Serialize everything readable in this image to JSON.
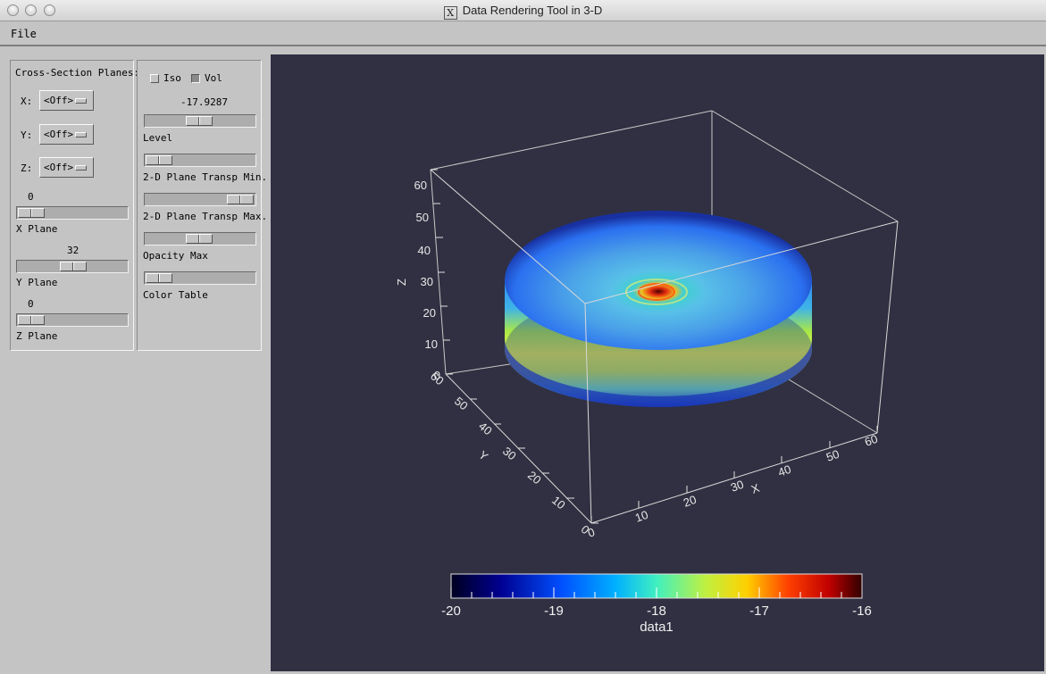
{
  "window": {
    "title": "Data Rendering Tool in 3-D"
  },
  "menu": {
    "file": "File"
  },
  "cross_section": {
    "title": "Cross-Section Planes:",
    "x": {
      "label": "X:",
      "value": "<Off>"
    },
    "y": {
      "label": "Y:",
      "value": "<Off>"
    },
    "z": {
      "label": "Z:",
      "value": "<Off>"
    },
    "x_plane": {
      "value": "0",
      "label": "X Plane"
    },
    "y_plane": {
      "value": "32",
      "label": "Y Plane"
    },
    "z_plane": {
      "value": "0",
      "label": "Z Plane"
    }
  },
  "render_opts": {
    "iso": {
      "label": "Iso",
      "checked": false
    },
    "vol": {
      "label": "Vol",
      "checked": true
    },
    "level_value": "-17.9287",
    "level_label": "Level",
    "transp_min_label": "2-D Plane Transp Min.",
    "transp_max_label": "2-D Plane Transp Max.",
    "opacity_label": "Opacity Max",
    "color_table_label": "Color Table"
  },
  "plot": {
    "background": "#303042",
    "axis_labels": {
      "x": "X",
      "y": "Y",
      "z": "Z"
    },
    "z_ticks": [
      "0",
      "10",
      "20",
      "30",
      "40",
      "50",
      "60"
    ],
    "x_ticks": [
      "0",
      "10",
      "20",
      "30",
      "40",
      "50",
      "60"
    ],
    "y_ticks": [
      "0",
      "10",
      "20",
      "30",
      "40",
      "50",
      "60"
    ],
    "colorbar": {
      "label": "data1",
      "ticks": [
        "-20",
        "-19",
        "-18",
        "-17",
        "-16"
      ],
      "range": [
        -20,
        -16
      ],
      "colormap": "jet"
    }
  }
}
